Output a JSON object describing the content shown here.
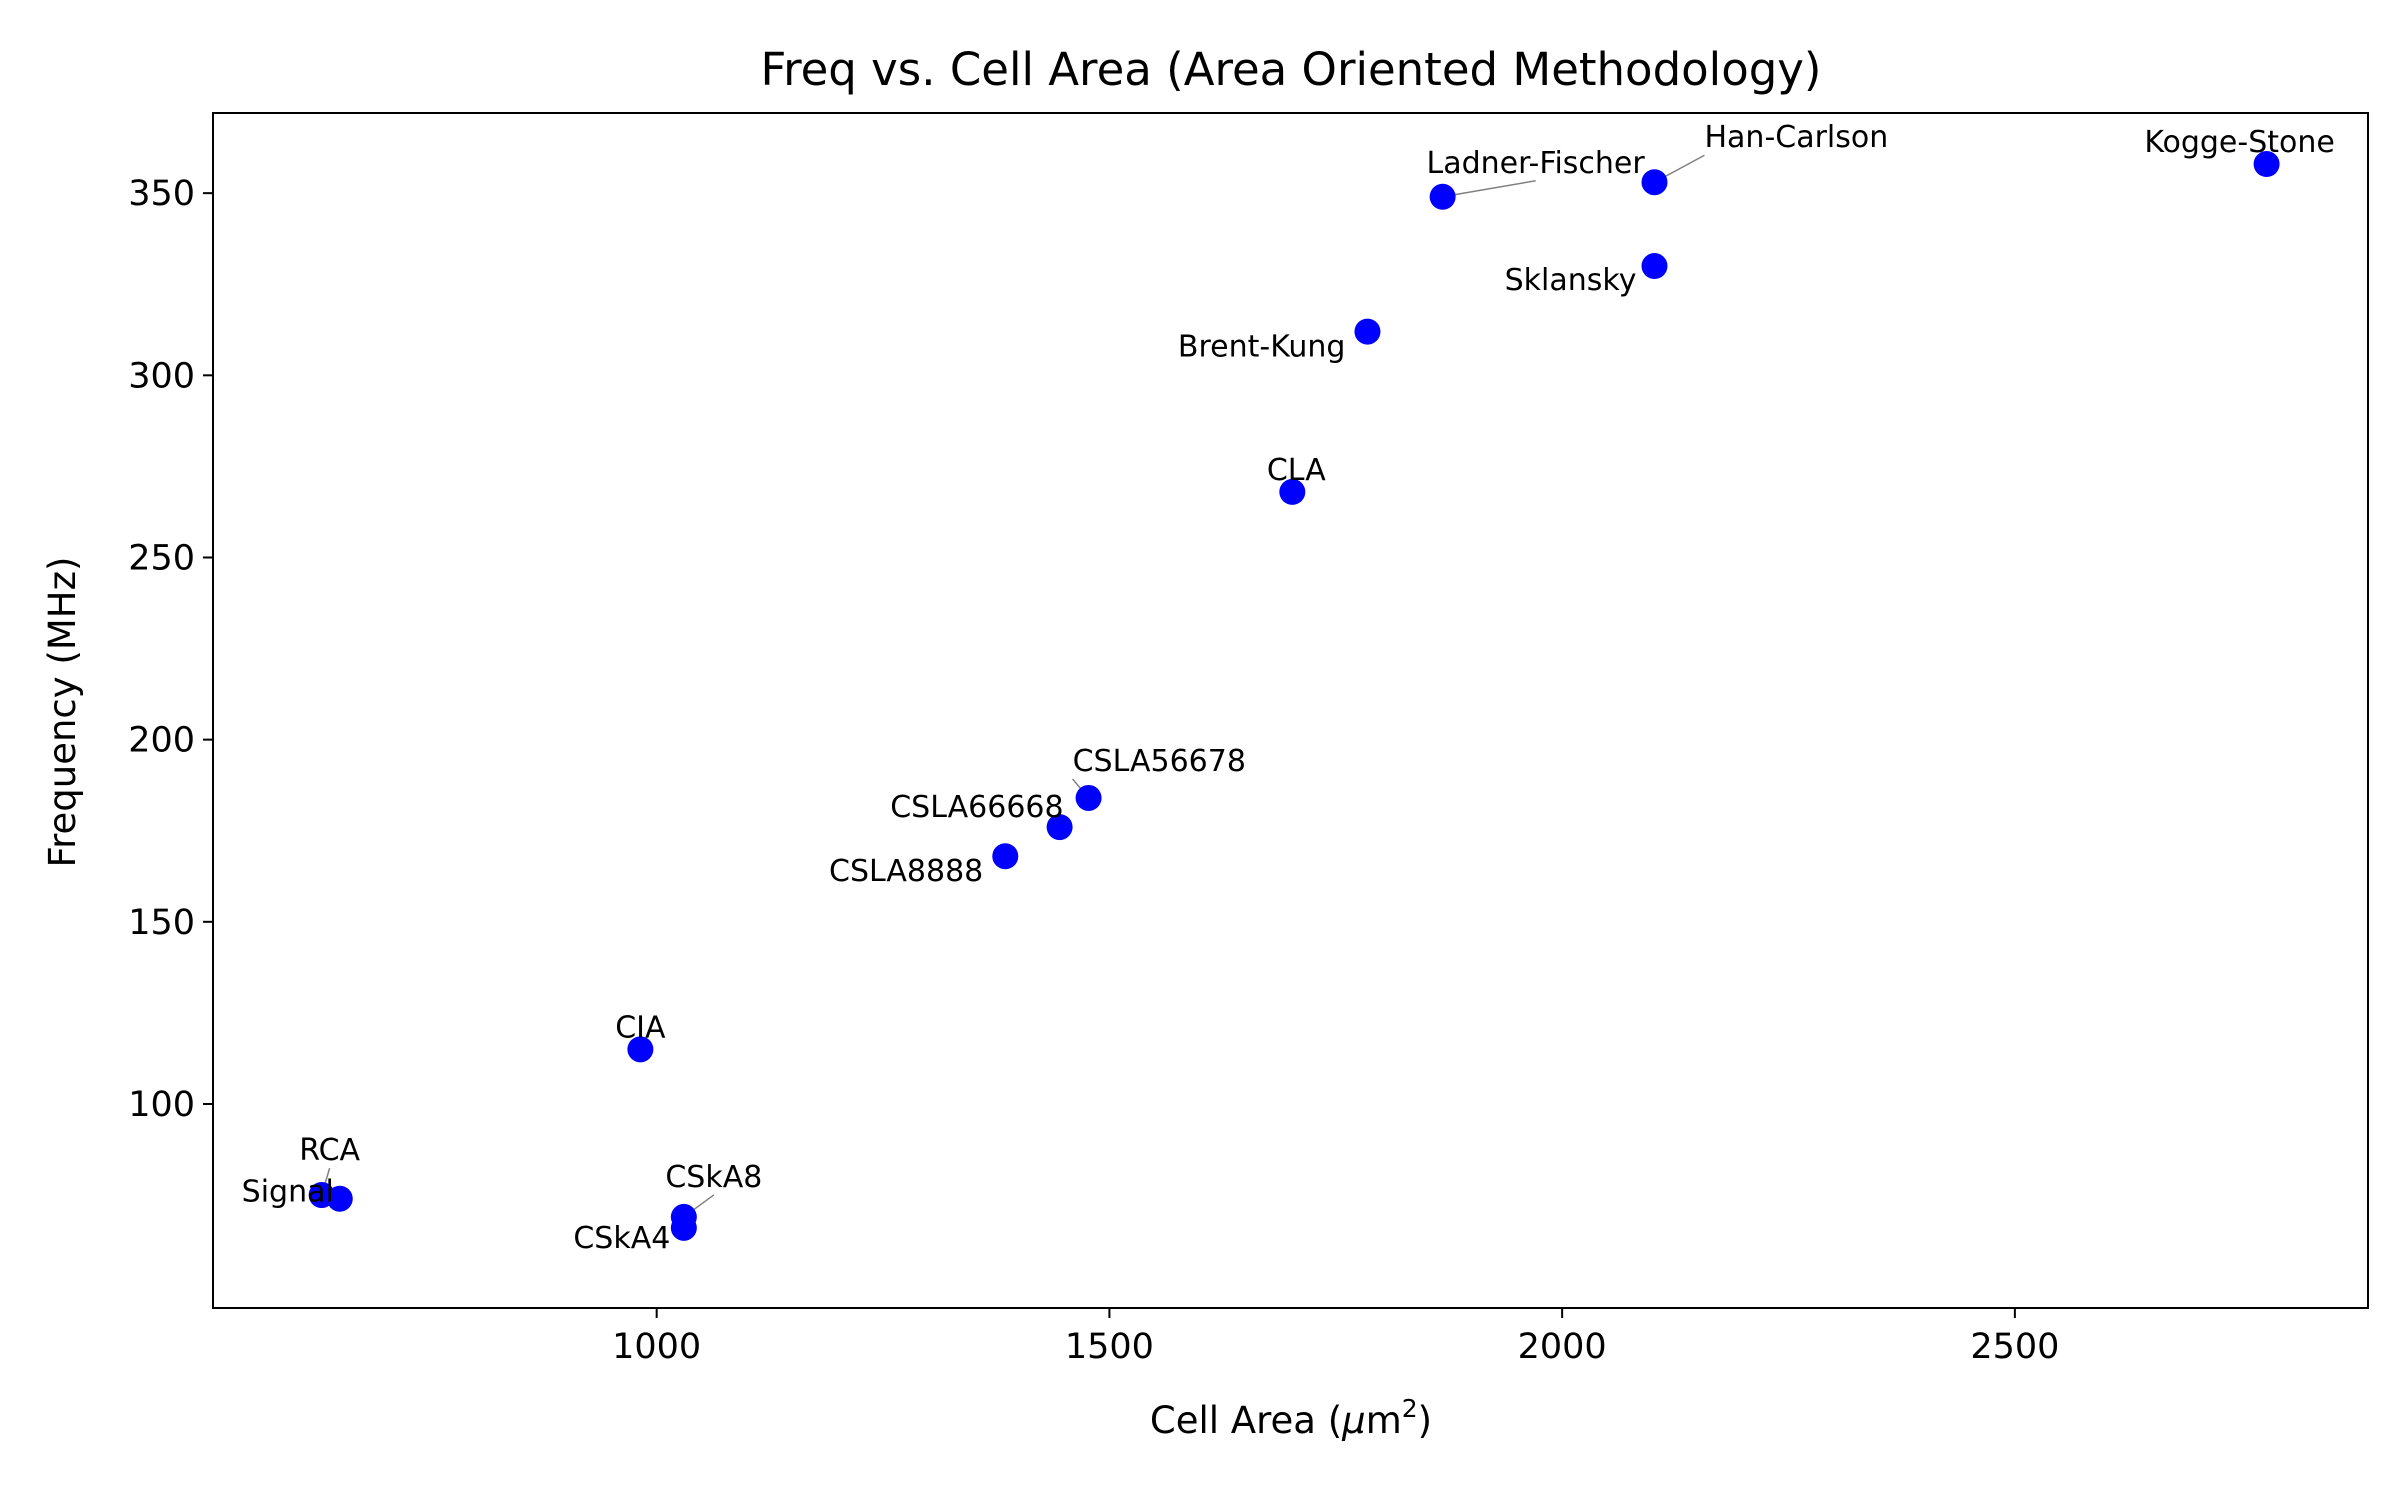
{
  "chart_data": {
    "type": "scatter",
    "title": "Freq vs. Cell Area (Area Oriented Methodology)",
    "xlabel": {
      "prefix": "Cell Area (",
      "mu": "μ",
      "unit": "m",
      "sup": "2",
      "suffix": ")"
    },
    "ylabel": "Frequency (MHz)",
    "xlim": [
      510,
      2890
    ],
    "ylim": [
      44,
      372
    ],
    "xticks": [
      1000,
      1500,
      2000,
      2500
    ],
    "yticks": [
      100,
      150,
      200,
      250,
      300,
      350
    ],
    "grid": false,
    "marker_color": "#0000ff",
    "leader_color": "#808080",
    "points": [
      {
        "label": "RCA",
        "x": 630,
        "y": 75
      },
      {
        "label": "Signal",
        "x": 650,
        "y": 74
      },
      {
        "label": "CIA",
        "x": 982,
        "y": 115
      },
      {
        "label": "CSkA8",
        "x": 1030,
        "y": 69
      },
      {
        "label": "CSkA4",
        "x": 1030,
        "y": 66
      },
      {
        "label": "CSLA8888",
        "x": 1385,
        "y": 168
      },
      {
        "label": "CSLA66668",
        "x": 1445,
        "y": 176
      },
      {
        "label": "CSLA56678",
        "x": 1477,
        "y": 184
      },
      {
        "label": "CLA",
        "x": 1702,
        "y": 268
      },
      {
        "label": "Brent-Kung",
        "x": 1785,
        "y": 312
      },
      {
        "label": "Ladner-Fischer",
        "x": 1868,
        "y": 349
      },
      {
        "label": "Han-Carlson",
        "x": 2102,
        "y": 353
      },
      {
        "label": "Sklansky",
        "x": 2102,
        "y": 330
      },
      {
        "label": "Kogge-Stone",
        "x": 2778,
        "y": 358
      }
    ]
  }
}
